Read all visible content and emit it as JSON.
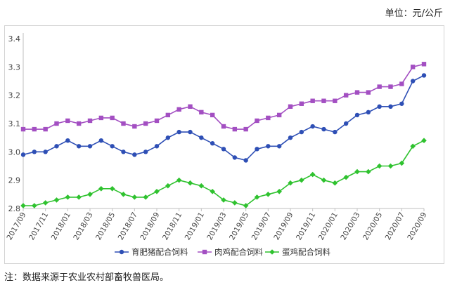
{
  "unit_label": "单位：元/公斤",
  "note": "注：数据来源于农业农村部畜牧兽医局。",
  "chart_data": {
    "type": "line",
    "title": "",
    "xlabel": "",
    "ylabel": "",
    "ylim": [
      2.8,
      3.4
    ],
    "yticks": [
      2.8,
      2.9,
      3.0,
      3.1,
      3.2,
      3.3,
      3.4
    ],
    "grid": false,
    "legend_position": "bottom",
    "x": [
      "2017/09",
      "2017/10",
      "2017/11",
      "2017/12",
      "2018/01",
      "2018/02",
      "2018/03",
      "2018/04",
      "2018/05",
      "2018/06",
      "2018/07",
      "2018/08",
      "2018/09",
      "2018/10",
      "2018/11",
      "2018/12",
      "2019/01",
      "2019/02",
      "2019/03",
      "2019/04",
      "2019/05",
      "2019/06",
      "2019/07",
      "2019/08",
      "2019/09",
      "2019/10",
      "2019/11",
      "2019/12",
      "2020/01",
      "2020/02",
      "2020/03",
      "2020/04",
      "2020/05",
      "2020/06",
      "2020/07",
      "2020/08",
      "2020/09"
    ],
    "xtick_labels": [
      "2017/09",
      "2017/11",
      "2018/01",
      "2018/03",
      "2018/05",
      "2018/07",
      "2018/09",
      "2018/11",
      "2019/01",
      "2019/03",
      "2019/05",
      "2019/07",
      "2019/09",
      "2019/11",
      "2020/01",
      "2020/03",
      "2020/05",
      "2020/07",
      "2020/09"
    ],
    "series": [
      {
        "name": "育肥猪配合饲料",
        "color": "#2e4fb5",
        "marker": "circle",
        "values": [
          2.99,
          3.0,
          3.0,
          3.02,
          3.04,
          3.02,
          3.02,
          3.04,
          3.02,
          3.0,
          2.99,
          3.0,
          3.02,
          3.05,
          3.07,
          3.07,
          3.05,
          3.03,
          3.01,
          2.98,
          2.97,
          3.01,
          3.02,
          3.02,
          3.05,
          3.07,
          3.09,
          3.08,
          3.07,
          3.1,
          3.13,
          3.14,
          3.16,
          3.16,
          3.17,
          3.25,
          3.27
        ]
      },
      {
        "name": "肉鸡配合饲料",
        "color": "#a34fc2",
        "marker": "square",
        "values": [
          3.08,
          3.08,
          3.08,
          3.1,
          3.11,
          3.1,
          3.11,
          3.12,
          3.12,
          3.1,
          3.09,
          3.1,
          3.11,
          3.13,
          3.15,
          3.16,
          3.14,
          3.13,
          3.09,
          3.08,
          3.08,
          3.11,
          3.12,
          3.13,
          3.16,
          3.17,
          3.18,
          3.18,
          3.18,
          3.2,
          3.21,
          3.21,
          3.23,
          3.23,
          3.24,
          3.3,
          3.31
        ]
      },
      {
        "name": "蛋鸡配合饲料",
        "color": "#2fc22f",
        "marker": "diamond",
        "values": [
          2.81,
          2.81,
          2.82,
          2.83,
          2.84,
          2.84,
          2.85,
          2.87,
          2.87,
          2.85,
          2.84,
          2.84,
          2.86,
          2.88,
          2.9,
          2.89,
          2.88,
          2.86,
          2.83,
          2.82,
          2.81,
          2.84,
          2.85,
          2.86,
          2.89,
          2.9,
          2.92,
          2.9,
          2.89,
          2.91,
          2.93,
          2.93,
          2.95,
          2.95,
          2.96,
          3.02,
          3.04
        ]
      }
    ]
  }
}
